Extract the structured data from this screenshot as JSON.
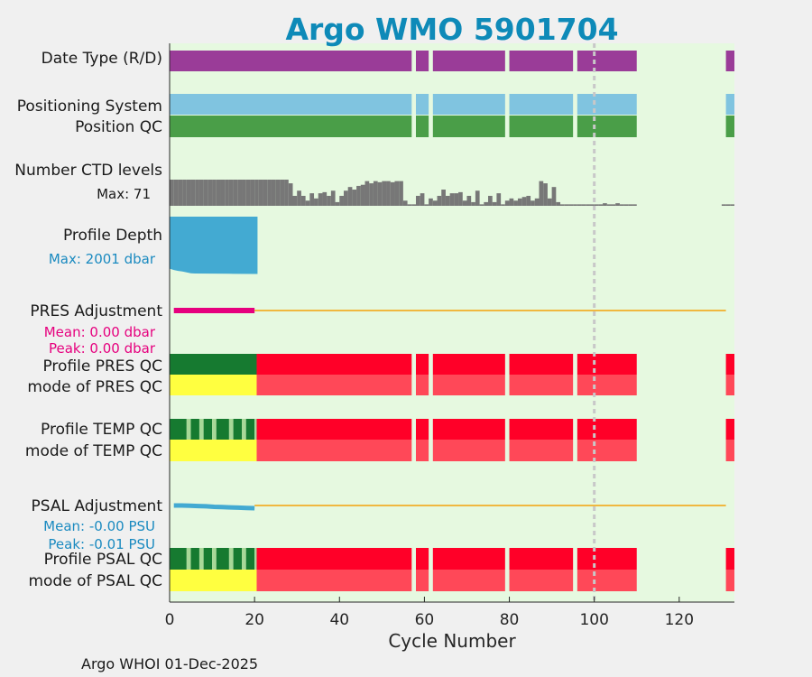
{
  "chart_data": {
    "type": "bar",
    "title": "Argo WMO 5901704",
    "xlabel": "Cycle Number",
    "xlim": [
      0,
      133
    ],
    "xticks": [
      "0",
      "20",
      "40",
      "60",
      "80",
      "100",
      "120"
    ],
    "xtick_values": [
      0,
      20,
      40,
      60,
      80,
      100,
      120
    ],
    "reference_cycle": 100,
    "footer": "Argo WHOI 01-Dec-2025",
    "rows": {
      "date_type": "Date Type (R/D)",
      "positioning": "Positioning System",
      "position_qc": "Position QC",
      "ctd_levels": "Number CTD levels",
      "profile_depth": "Profile Depth",
      "pres_adj": "PRES Adjustment",
      "pres_qc": "Profile PRES QC",
      "mode_pres_qc": "mode of PRES QC",
      "temp_qc": "Profile TEMP QC",
      "mode_temp_qc": "mode of TEMP QC",
      "psal_adj": "PSAL Adjustment",
      "psal_qc": "Profile PSAL QC",
      "mode_psal_qc": "mode of PSAL QC"
    },
    "ctd_max_text": "Max: 71",
    "depth_max_text": "Max: 2001 dbar",
    "pres_mean_text": "Mean: 0.00 dbar",
    "pres_peak_text": "Peak: 0.00 dbar",
    "psal_mean_text": "Mean: -0.00 PSU",
    "psal_peak_text": "Peak: -0.01 PSU",
    "data_segments": [
      [
        0,
        57
      ],
      [
        58,
        61
      ],
      [
        62,
        79
      ],
      [
        80,
        95
      ],
      [
        96,
        110
      ],
      [
        131,
        133
      ]
    ],
    "ctd_levels": {
      "max": 71,
      "values": [
        [
          1,
          71
        ],
        [
          2,
          71
        ],
        [
          3,
          71
        ],
        [
          4,
          71
        ],
        [
          5,
          71
        ],
        [
          6,
          71
        ],
        [
          7,
          71
        ],
        [
          8,
          71
        ],
        [
          9,
          71
        ],
        [
          10,
          71
        ],
        [
          11,
          71
        ],
        [
          12,
          71
        ],
        [
          13,
          71
        ],
        [
          14,
          71
        ],
        [
          15,
          71
        ],
        [
          16,
          71
        ],
        [
          17,
          71
        ],
        [
          18,
          71
        ],
        [
          19,
          71
        ],
        [
          20,
          71
        ],
        [
          21,
          71
        ],
        [
          22,
          71
        ],
        [
          23,
          71
        ],
        [
          24,
          71
        ],
        [
          25,
          71
        ],
        [
          26,
          71
        ],
        [
          27,
          71
        ],
        [
          28,
          71
        ],
        [
          29,
          61
        ],
        [
          30,
          27
        ],
        [
          31,
          41
        ],
        [
          32,
          27
        ],
        [
          33,
          14
        ],
        [
          34,
          34
        ],
        [
          35,
          20
        ],
        [
          36,
          34
        ],
        [
          37,
          37
        ],
        [
          38,
          27
        ],
        [
          39,
          41
        ],
        [
          40,
          10
        ],
        [
          41,
          27
        ],
        [
          42,
          41
        ],
        [
          43,
          51
        ],
        [
          44,
          44
        ],
        [
          45,
          54
        ],
        [
          46,
          57
        ],
        [
          47,
          67
        ],
        [
          48,
          61
        ],
        [
          49,
          67
        ],
        [
          50,
          64
        ],
        [
          51,
          67
        ],
        [
          52,
          67
        ],
        [
          53,
          64
        ],
        [
          54,
          67
        ],
        [
          55,
          67
        ],
        [
          56,
          14
        ],
        [
          57,
          4
        ],
        [
          58,
          4
        ],
        [
          59,
          27
        ],
        [
          60,
          34
        ],
        [
          61,
          4
        ],
        [
          62,
          20
        ],
        [
          63,
          14
        ],
        [
          64,
          27
        ],
        [
          65,
          44
        ],
        [
          66,
          27
        ],
        [
          67,
          34
        ],
        [
          68,
          34
        ],
        [
          69,
          37
        ],
        [
          70,
          14
        ],
        [
          71,
          27
        ],
        [
          72,
          10
        ],
        [
          73,
          41
        ],
        [
          74,
          4
        ],
        [
          75,
          10
        ],
        [
          76,
          27
        ],
        [
          77,
          10
        ],
        [
          78,
          34
        ],
        [
          79,
          4
        ],
        [
          80,
          14
        ],
        [
          81,
          20
        ],
        [
          82,
          14
        ],
        [
          83,
          20
        ],
        [
          84,
          24
        ],
        [
          85,
          27
        ],
        [
          86,
          14
        ],
        [
          87,
          20
        ],
        [
          88,
          67
        ],
        [
          89,
          61
        ],
        [
          90,
          20
        ],
        [
          91,
          51
        ],
        [
          92,
          10
        ],
        [
          93,
          4
        ],
        [
          94,
          4
        ],
        [
          95,
          4
        ],
        [
          96,
          4
        ],
        [
          97,
          4
        ],
        [
          98,
          4
        ],
        [
          99,
          4
        ],
        [
          100,
          4
        ],
        [
          101,
          4
        ],
        [
          102,
          4
        ],
        [
          103,
          7
        ],
        [
          104,
          4
        ],
        [
          105,
          4
        ],
        [
          106,
          7
        ],
        [
          107,
          4
        ],
        [
          108,
          4
        ],
        [
          109,
          4
        ],
        [
          110,
          4
        ],
        [
          131,
          4
        ],
        [
          132,
          4
        ],
        [
          133,
          4
        ]
      ]
    },
    "profile_depth": {
      "max_dbar": 2001,
      "cycles": [
        0,
        1,
        2,
        3,
        4,
        5,
        6,
        10,
        15,
        20,
        20.7
      ],
      "values": [
        1800,
        1850,
        1880,
        1900,
        1930,
        1960,
        1970,
        1975,
        1980,
        1985,
        1985
      ]
    },
    "pres_adjustment": {
      "adjusted_cycles": [
        1,
        20
      ],
      "line_cycles": [
        20,
        131
      ],
      "mean_dbar": 0.0,
      "peak_dbar": 0.0
    },
    "psal_adjustment": {
      "adjusted_cycles": [
        1,
        20
      ],
      "line_cycles": [
        20,
        131
      ],
      "values_psu": [
        0.0,
        0.0,
        -0.001,
        -0.002,
        -0.003,
        -0.005,
        -0.006,
        -0.007,
        -0.008,
        -0.009,
        -0.01
      ],
      "mean_psu": -0.0,
      "peak_psu": -0.01
    },
    "qc_bands": {
      "temp_psal_profile_pattern": [
        [
          0,
          4,
          "A"
        ],
        [
          4,
          5,
          "B"
        ],
        [
          5,
          7,
          "A"
        ],
        [
          7,
          8,
          "B"
        ],
        [
          8,
          10,
          "A"
        ],
        [
          10,
          11,
          "B"
        ],
        [
          11,
          14,
          "A"
        ],
        [
          14,
          15,
          "B"
        ],
        [
          15,
          17,
          "A"
        ],
        [
          17,
          18,
          "B"
        ],
        [
          18,
          20,
          "A"
        ],
        [
          20,
          21,
          "B"
        ]
      ],
      "pres_profile_grade": "A",
      "mode_grade_before": "QC1",
      "grade_after": "F",
      "mode_grade_after": "QC4",
      "transition_cycle": 20.5
    },
    "colors": {
      "background": "#e6f9e0",
      "figure": "#f0f0f0",
      "title": "#0e8ab8",
      "date_type": "#9a3c98",
      "positioning": "#80c4e0",
      "position_qc": "#4a9e48",
      "ctd": "#777777",
      "depth": "#43aad2",
      "pres_adj": "#e6007e",
      "psal_adj": "#43aad2",
      "adj_line": "#f0b840",
      "grade_A": "#167a30",
      "grade_B": "#a8d898",
      "grade_F": "#ff0028",
      "mode_QC1": "#ffff40",
      "mode_QC4": "#ff4858",
      "refline": "#c8c8c8",
      "pres_text": "#e6007e",
      "psal_text": "#1a8ac0",
      "depth_text": "#1a8ac0"
    }
  }
}
